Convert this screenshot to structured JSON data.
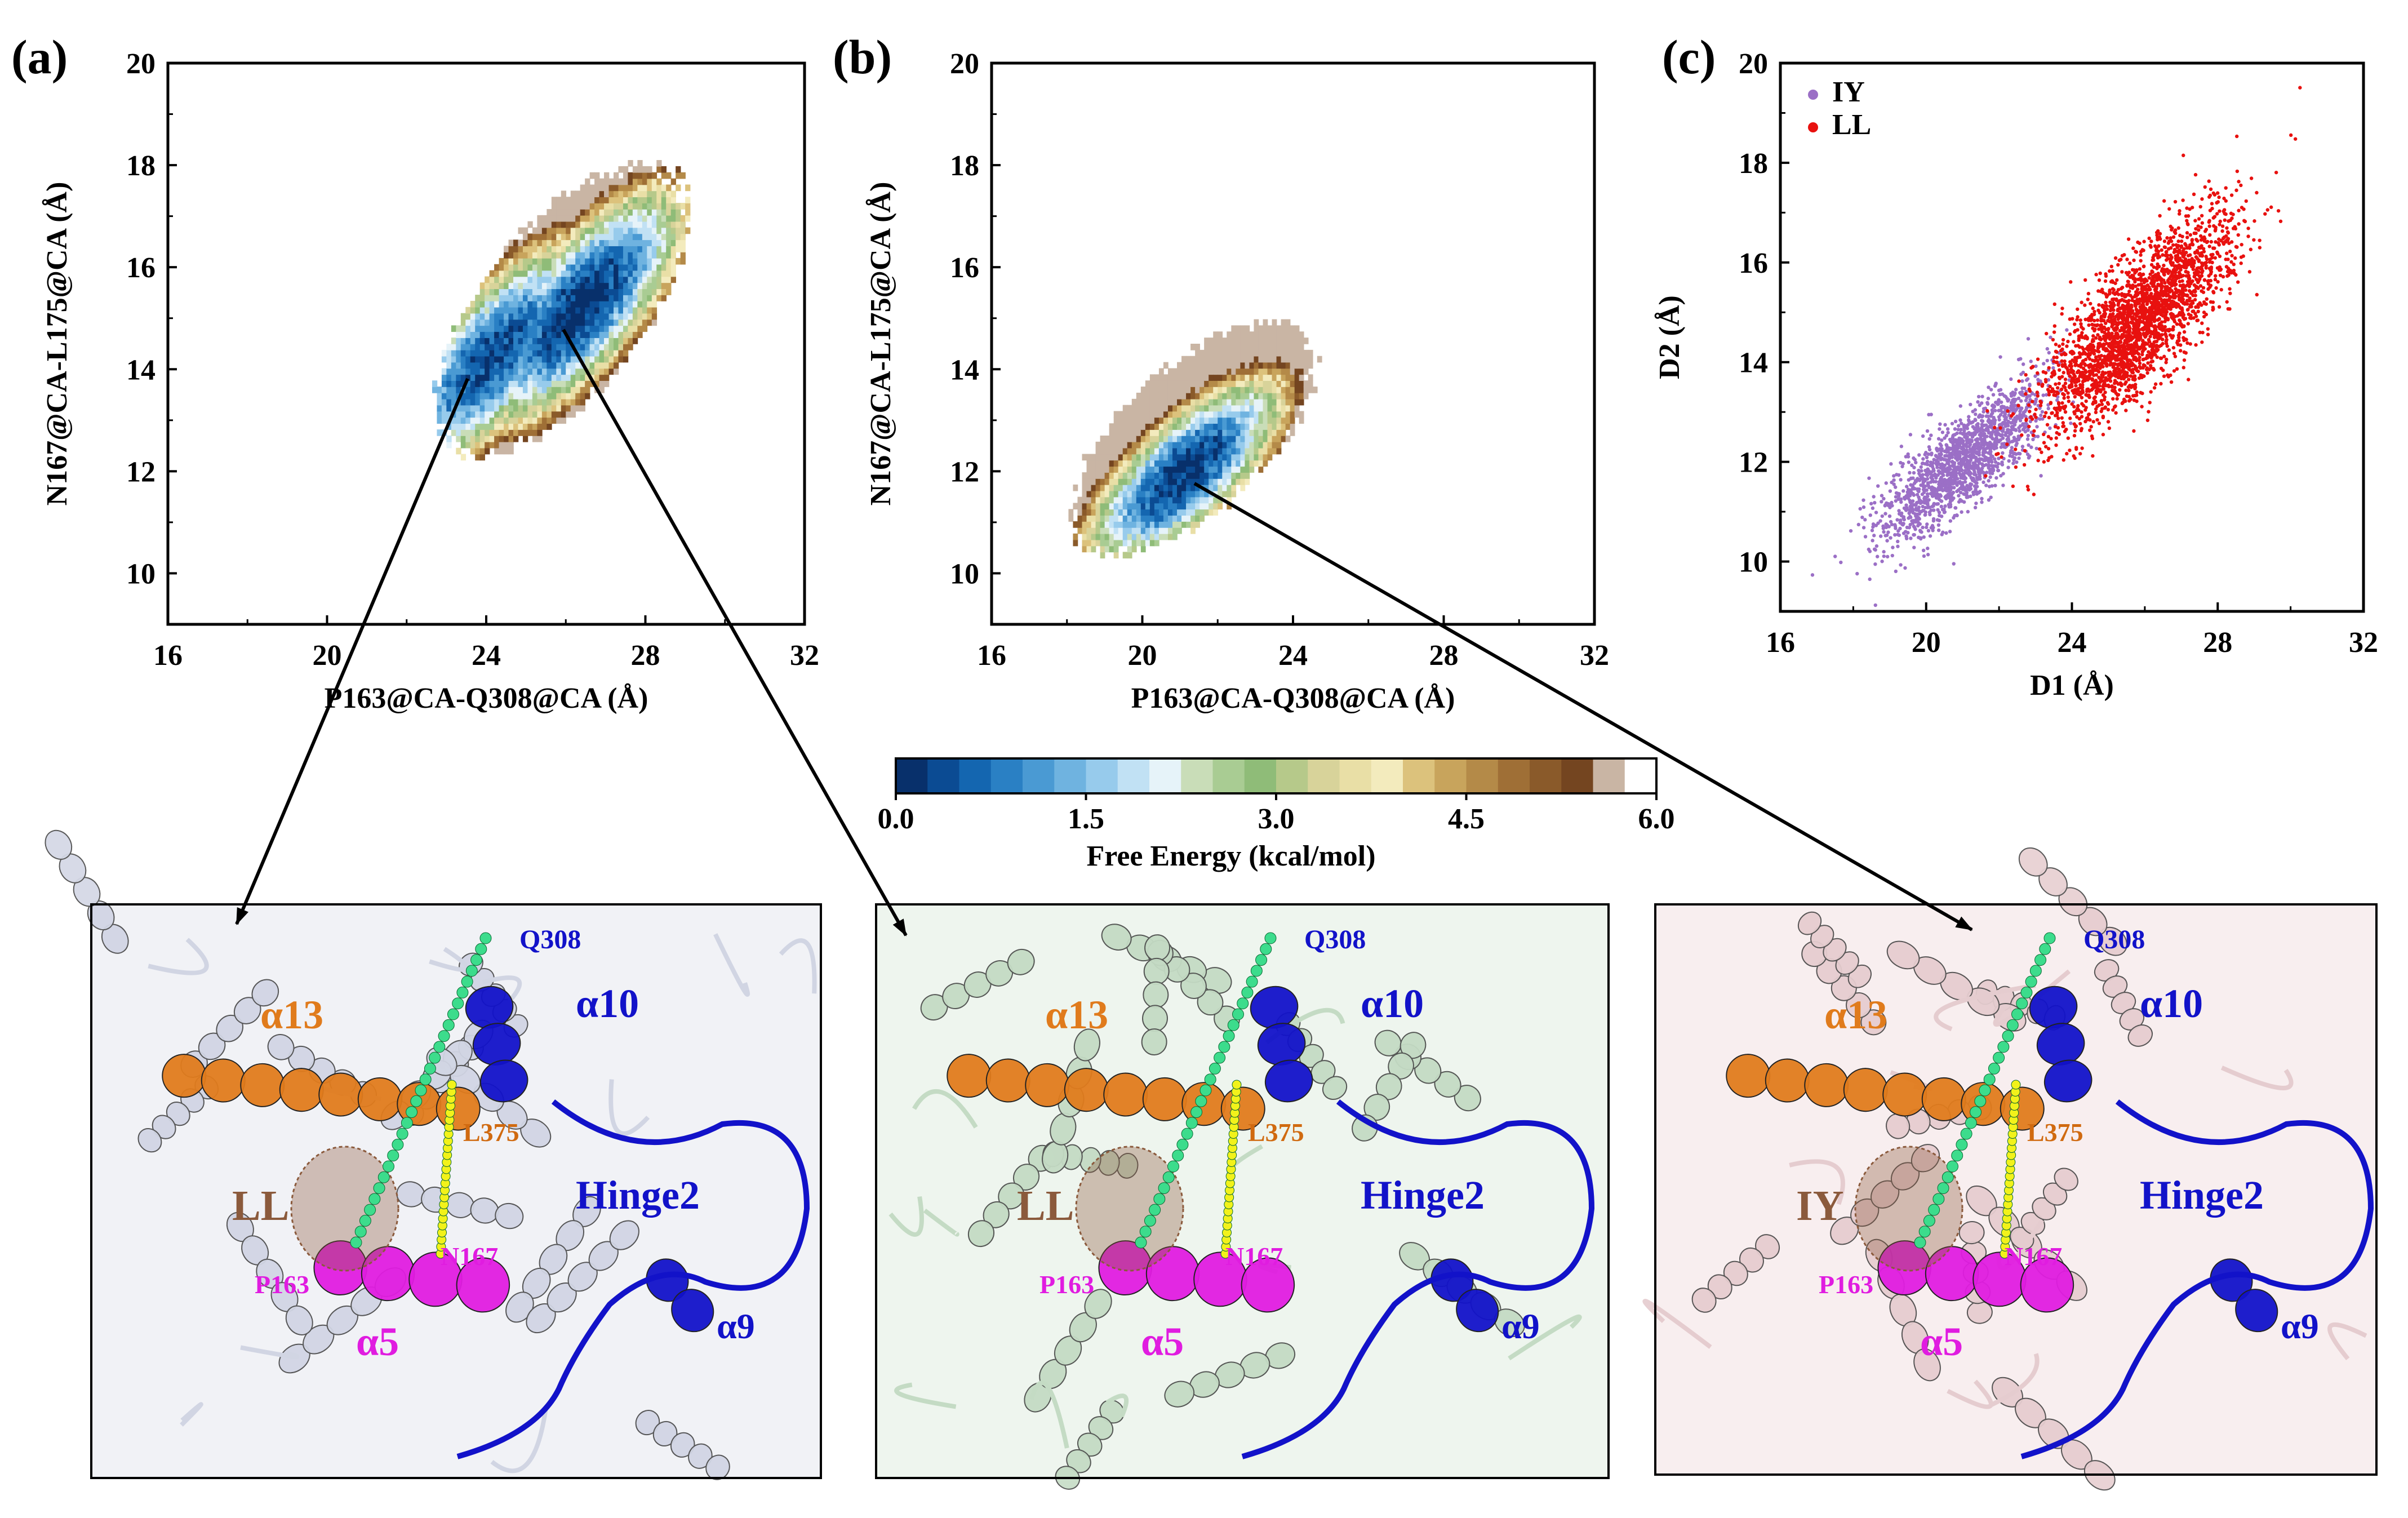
{
  "panels": {
    "a": {
      "label": "(a)",
      "xlabel": "P163@CA-Q308@CA (Å)",
      "ylabel": "N167@CA-L175@CA (Å)"
    },
    "b": {
      "label": "(b)",
      "xlabel": "P163@CA-Q308@CA (Å)",
      "ylabel": "N167@CA-L175@CA (Å)"
    },
    "c": {
      "label": "(c)",
      "xlabel": "D1 (Å)",
      "ylabel": "D2 (Å)"
    }
  },
  "colorbar": {
    "title": "Free Energy (kcal/mol)",
    "ticks": [
      "0.0",
      "1.5",
      "3.0",
      "4.5",
      "6.0"
    ],
    "colors": [
      "#08306b",
      "#0b4b93",
      "#1466b0",
      "#2a80c4",
      "#4a9ad3",
      "#6fb3e0",
      "#97cbec",
      "#c1e1f4",
      "#e6f3f9",
      "#c9ddb8",
      "#a9cc93",
      "#8fbc78",
      "#b6c98a",
      "#d8d39a",
      "#e9dfa6",
      "#f3ebbd",
      "#dcc27c",
      "#c8a45c",
      "#b48a48",
      "#9f6f36",
      "#8a5a2a",
      "#744520",
      "#c9b5a4",
      "#ffffff"
    ]
  },
  "structures": [
    {
      "pair": "LL",
      "q308": "Q308",
      "a10": "α10",
      "a13": "α13",
      "l375": "L375",
      "hinge": "Hinge2",
      "p163": "P163",
      "n167": "N167",
      "a5": "α5",
      "a9": "α9"
    },
    {
      "pair": "LL",
      "q308": "Q308",
      "a10": "α10",
      "a13": "α13",
      "l375": "L375",
      "hinge": "Hinge2",
      "p163": "P163",
      "n167": "N167",
      "a5": "α5",
      "a9": "α9"
    },
    {
      "pair": "IY",
      "q308": "Q308",
      "a10": "α10",
      "a13": "α13",
      "l375": "L375",
      "hinge": "Hinge2",
      "p163": "P163",
      "n167": "N167",
      "a5": "α5",
      "a9": "α9"
    }
  ],
  "chart_data": [
    {
      "type": "heatmap",
      "panel": "(a)",
      "xlabel": "P163@CA-Q308@CA (Å)",
      "ylabel": "N167@CA-L175@CA (Å)",
      "xlim": [
        16,
        32
      ],
      "ylim": [
        9,
        20
      ],
      "xticks": [
        16,
        20,
        24,
        28,
        32
      ],
      "yticks": [
        10,
        12,
        14,
        16,
        18,
        20
      ],
      "colorbar_range": [
        0.0,
        6.0
      ],
      "minima": [
        {
          "x": 23.8,
          "y": 14.0
        },
        {
          "x": 26.4,
          "y": 15.2
        }
      ],
      "sampled_region": {
        "x_range": [
          21.8,
          29.9
        ],
        "y_range": [
          11.5,
          18.7
        ]
      }
    },
    {
      "type": "heatmap",
      "panel": "(b)",
      "xlabel": "P163@CA-Q308@CA (Å)",
      "ylabel": "N167@CA-L175@CA (Å)",
      "xlim": [
        16,
        32
      ],
      "ylim": [
        9,
        20
      ],
      "xticks": [
        16,
        20,
        24,
        28,
        32
      ],
      "yticks": [
        10,
        12,
        14,
        16,
        18,
        20
      ],
      "colorbar_range": [
        0.0,
        6.0
      ],
      "minima": [
        {
          "x": 21.0,
          "y": 11.8
        }
      ],
      "sampled_region": {
        "x_range": [
          17.2,
          25.4
        ],
        "y_range": [
          9.7,
          15.5
        ]
      }
    },
    {
      "type": "scatter",
      "panel": "(c)",
      "xlabel": "D1 (Å)",
      "ylabel": "D2 (Å)",
      "xlim": [
        16,
        32
      ],
      "ylim": [
        9,
        20
      ],
      "xticks": [
        16,
        20,
        24,
        28,
        32
      ],
      "yticks": [
        10,
        12,
        14,
        16,
        18,
        20
      ],
      "legend": "top-left",
      "series": [
        {
          "name": "IY",
          "color": "#9b6fc6",
          "center": [
            21.0,
            12.0
          ],
          "x_range": [
            17.5,
            24.5
          ],
          "y_range": [
            9.7,
            15.0
          ]
        },
        {
          "name": "LL",
          "color": "#e8110f",
          "center": [
            25.8,
            14.8
          ],
          "x_range": [
            21.5,
            29.5
          ],
          "y_range": [
            11.8,
            19.2
          ]
        }
      ]
    }
  ]
}
